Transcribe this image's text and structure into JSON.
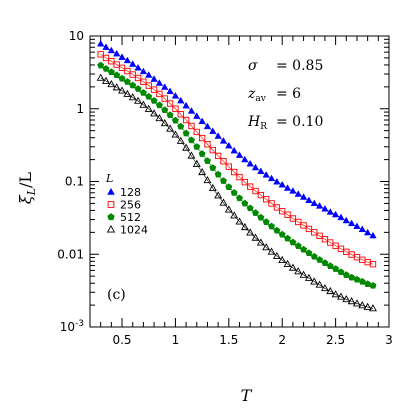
{
  "chart_data": {
    "type": "scatter",
    "xlabel": "T",
    "ylabel_main": "ξ",
    "ylabel_sub": "L",
    "ylabel_tail": "/L",
    "xlim": [
      0.2,
      3.0
    ],
    "ylim": [
      0.001,
      10
    ],
    "yscale": "log",
    "x_ticks": [
      0.5,
      1,
      1.5,
      2,
      2.5,
      3
    ],
    "x_tick_labels": [
      "0.5",
      "1",
      "1.5",
      "2",
      "2.5",
      "3"
    ],
    "y_ticks": [
      0.001,
      0.01,
      0.1,
      1,
      10
    ],
    "y_tick_labels": [
      "10-3",
      "0.01",
      "0.1",
      "1",
      "10"
    ],
    "grid": false,
    "panel_label": "(c)",
    "params": {
      "sigma_sym": "σ",
      "sigma_val": "= 0.85",
      "z_sym": "z",
      "z_sub": "av",
      "z_val": "= 6",
      "h_sym": "H",
      "h_sub": "R",
      "h_val": "= 0.10"
    },
    "legend": {
      "title": "L",
      "placement": "center-left"
    },
    "x": [
      0.3,
      0.35,
      0.4,
      0.45,
      0.5,
      0.55,
      0.6,
      0.65,
      0.7,
      0.75,
      0.8,
      0.85,
      0.9,
      0.95,
      1.0,
      1.05,
      1.1,
      1.15,
      1.2,
      1.25,
      1.3,
      1.35,
      1.4,
      1.45,
      1.5,
      1.55,
      1.6,
      1.65,
      1.7,
      1.75,
      1.8,
      1.85,
      1.9,
      1.95,
      2.0,
      2.05,
      2.1,
      2.15,
      2.2,
      2.25,
      2.3,
      2.35,
      2.4,
      2.45,
      2.5,
      2.55,
      2.6,
      2.65,
      2.7,
      2.75,
      2.8,
      2.85
    ],
    "series": [
      {
        "name": "128",
        "marker": "triangle-filled",
        "color": "#0000ff",
        "values": [
          7.8,
          7.0,
          6.3,
          5.7,
          5.1,
          4.6,
          4.1,
          3.65,
          3.25,
          2.9,
          2.55,
          2.25,
          1.98,
          1.73,
          1.5,
          1.29,
          1.1,
          0.93,
          0.79,
          0.67,
          0.57,
          0.49,
          0.42,
          0.36,
          0.31,
          0.265,
          0.23,
          0.2,
          0.175,
          0.155,
          0.138,
          0.123,
          0.11,
          0.099,
          0.09,
          0.081,
          0.074,
          0.067,
          0.061,
          0.055,
          0.05,
          0.046,
          0.042,
          0.038,
          0.035,
          0.032,
          0.029,
          0.0265,
          0.0242,
          0.022,
          0.0198,
          0.018
        ]
      },
      {
        "name": "256",
        "marker": "square-open",
        "color": "#ff0000",
        "values": [
          5.6,
          5.0,
          4.5,
          4.05,
          3.65,
          3.3,
          2.95,
          2.65,
          2.35,
          2.08,
          1.83,
          1.6,
          1.38,
          1.18,
          1.0,
          0.84,
          0.7,
          0.58,
          0.48,
          0.395,
          0.325,
          0.27,
          0.225,
          0.19,
          0.16,
          0.135,
          0.115,
          0.098,
          0.085,
          0.074,
          0.065,
          0.057,
          0.05,
          0.044,
          0.039,
          0.035,
          0.031,
          0.0278,
          0.0249,
          0.0223,
          0.02,
          0.0179,
          0.0161,
          0.0145,
          0.0131,
          0.0119,
          0.0108,
          0.0099,
          0.0091,
          0.0084,
          0.0078,
          0.0073
        ]
      },
      {
        "name": "512",
        "marker": "pentagon-filled",
        "color": "#008800",
        "values": [
          3.95,
          3.55,
          3.2,
          2.9,
          2.6,
          2.35,
          2.1,
          1.88,
          1.66,
          1.47,
          1.29,
          1.12,
          0.96,
          0.82,
          0.69,
          0.57,
          0.46,
          0.37,
          0.3,
          0.24,
          0.192,
          0.154,
          0.125,
          0.102,
          0.084,
          0.07,
          0.059,
          0.05,
          0.043,
          0.037,
          0.032,
          0.0278,
          0.0242,
          0.0212,
          0.0187,
          0.0165,
          0.0146,
          0.013,
          0.0116,
          0.0104,
          0.0093,
          0.0084,
          0.0076,
          0.0069,
          0.0063,
          0.0057,
          0.0052,
          0.0048,
          0.0045,
          0.0042,
          0.0039,
          0.0037
        ]
      },
      {
        "name": "1024",
        "marker": "triangle-open",
        "color": "#000000",
        "values": [
          2.65,
          2.4,
          2.17,
          1.96,
          1.77,
          1.59,
          1.43,
          1.28,
          1.13,
          0.99,
          0.86,
          0.74,
          0.63,
          0.53,
          0.44,
          0.36,
          0.29,
          0.226,
          0.174,
          0.134,
          0.104,
          0.081,
          0.064,
          0.051,
          0.041,
          0.034,
          0.028,
          0.0235,
          0.0198,
          0.0168,
          0.0144,
          0.0124,
          0.0108,
          0.0094,
          0.0083,
          0.0073,
          0.0065,
          0.0058,
          0.0052,
          0.0047,
          0.0042,
          0.0038,
          0.0034,
          0.0031,
          0.0028,
          0.0026,
          0.0024,
          0.00225,
          0.0021,
          0.00198,
          0.00188,
          0.0018
        ]
      }
    ]
  }
}
